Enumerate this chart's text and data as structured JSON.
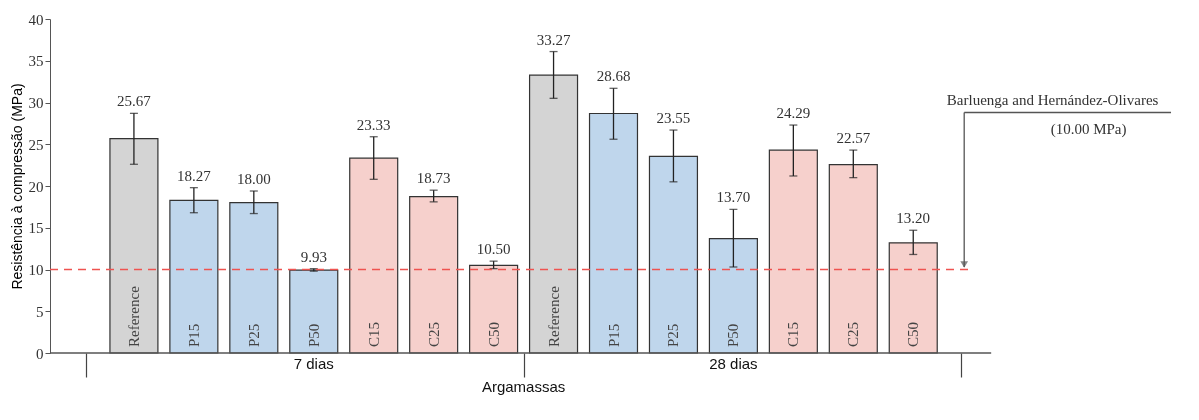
{
  "chart_data": {
    "type": "bar",
    "xlabel": "Argamassas",
    "ylabel": "Resistência à compressão (MPa)",
    "categories": [
      "Reference",
      "P15",
      "P25",
      "P50",
      "C15",
      "C25",
      "C50",
      "Reference",
      "P15",
      "P25",
      "P50",
      "C15",
      "C25",
      "C50"
    ],
    "values": [
      25.67,
      18.27,
      18.0,
      9.93,
      23.33,
      18.73,
      10.5,
      33.27,
      28.68,
      23.55,
      13.7,
      24.29,
      22.57,
      13.2
    ],
    "colors": [
      "#d4d4d4",
      "#bfd6ec",
      "#bfd6ec",
      "#bfd6ec",
      "#f6d0cc",
      "#f6d0cc",
      "#f6d0cc",
      "#d4d4d4",
      "#bfd6ec",
      "#bfd6ec",
      "#bfd6ec",
      "#f6d0cc",
      "#f6d0cc",
      "#f6d0cc"
    ],
    "errors": [
      [
        22.6,
        28.7
      ],
      [
        16.8,
        19.8
      ],
      [
        16.7,
        19.4
      ],
      [
        9.8,
        10.1
      ],
      [
        20.8,
        25.9
      ],
      [
        18.1,
        19.5
      ],
      [
        10.1,
        11.0
      ],
      [
        30.5,
        36.1
      ],
      [
        25.6,
        31.7
      ],
      [
        20.5,
        26.7
      ],
      [
        10.3,
        17.2
      ],
      [
        21.2,
        27.3
      ],
      [
        21.0,
        24.3
      ],
      [
        11.8,
        14.7
      ]
    ],
    "value_labels": [
      "25.67",
      "18.27",
      "18.00",
      "9.93",
      "23.33",
      "18.73",
      "10.50",
      "33.27",
      "28.68",
      "23.55",
      "13.70",
      "24.29",
      "22.57",
      "13.20"
    ],
    "ylim": [
      0,
      40
    ],
    "yticks": [
      0,
      5,
      10,
      15,
      20,
      25,
      30,
      35,
      40
    ],
    "grid": false,
    "ref_lines": [
      {
        "axis": "y",
        "value": 10,
        "label": "Barluenga and Hernández-Olivares\n(10.00 MPa)",
        "color": "#ef5350",
        "line_style": "dashed"
      }
    ],
    "annotations": [
      "7 dias",
      "28 dias"
    ]
  }
}
